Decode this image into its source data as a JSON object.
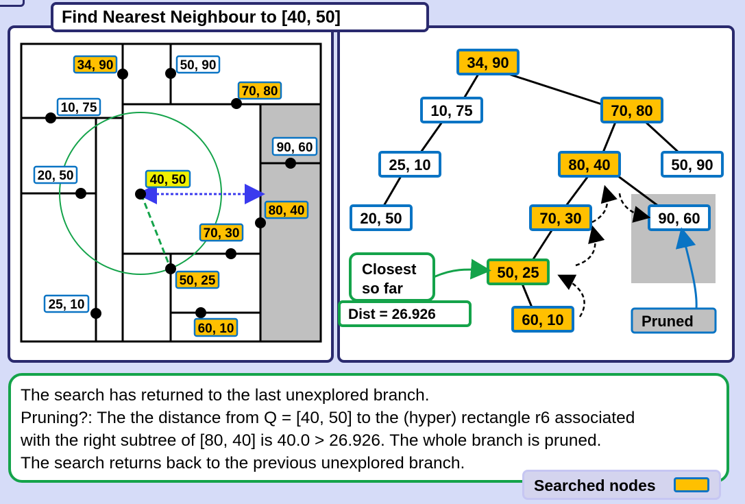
{
  "title": "Find Nearest Neighbour to [40, 50]",
  "colors": {
    "searched": "#ffc000",
    "node_border": "#0a74c4",
    "highlight": "#f0f000",
    "green": "#14a34a",
    "pruned_bg": "#c0c0c0",
    "frame": "#2a2a6e"
  },
  "space_labels": {
    "p34_90": "34, 90",
    "p50_90": "50, 90",
    "p70_80": "70, 80",
    "p10_75": "10, 75",
    "p90_60": "90, 60",
    "p20_50": "20, 50",
    "p40_50": "40, 50",
    "p80_40": "80, 40",
    "p70_30": "70, 30",
    "p50_25": "50, 25",
    "p25_10": "25, 10",
    "p60_10": "60, 10"
  },
  "tree_nodes": {
    "n34_90": "34, 90",
    "n10_75": "10, 75",
    "n70_80": "70, 80",
    "n25_10": "25, 10",
    "n80_40": "80, 40",
    "n50_90": "50, 90",
    "n20_50": "20, 50",
    "n70_30": "70, 30",
    "n90_60": "90, 60",
    "n50_25": "50, 25",
    "n60_10": "60, 10"
  },
  "closest_label": [
    "Closest",
    "so far"
  ],
  "dist_label": "Dist = 26.926",
  "pruned_label": "Pruned",
  "explanation": [
    "The search  has returned to the last unexplored branch.",
    "Pruning?: The the distance from Q = [40, 50] to the (hyper) rectangle r6 associated",
    "with the right subtree of [80, 40] is 40.0 > 26.926. The whole branch is pruned.",
    "The search returns back to the previous unexplored branch."
  ],
  "legend_label": "Searched nodes"
}
